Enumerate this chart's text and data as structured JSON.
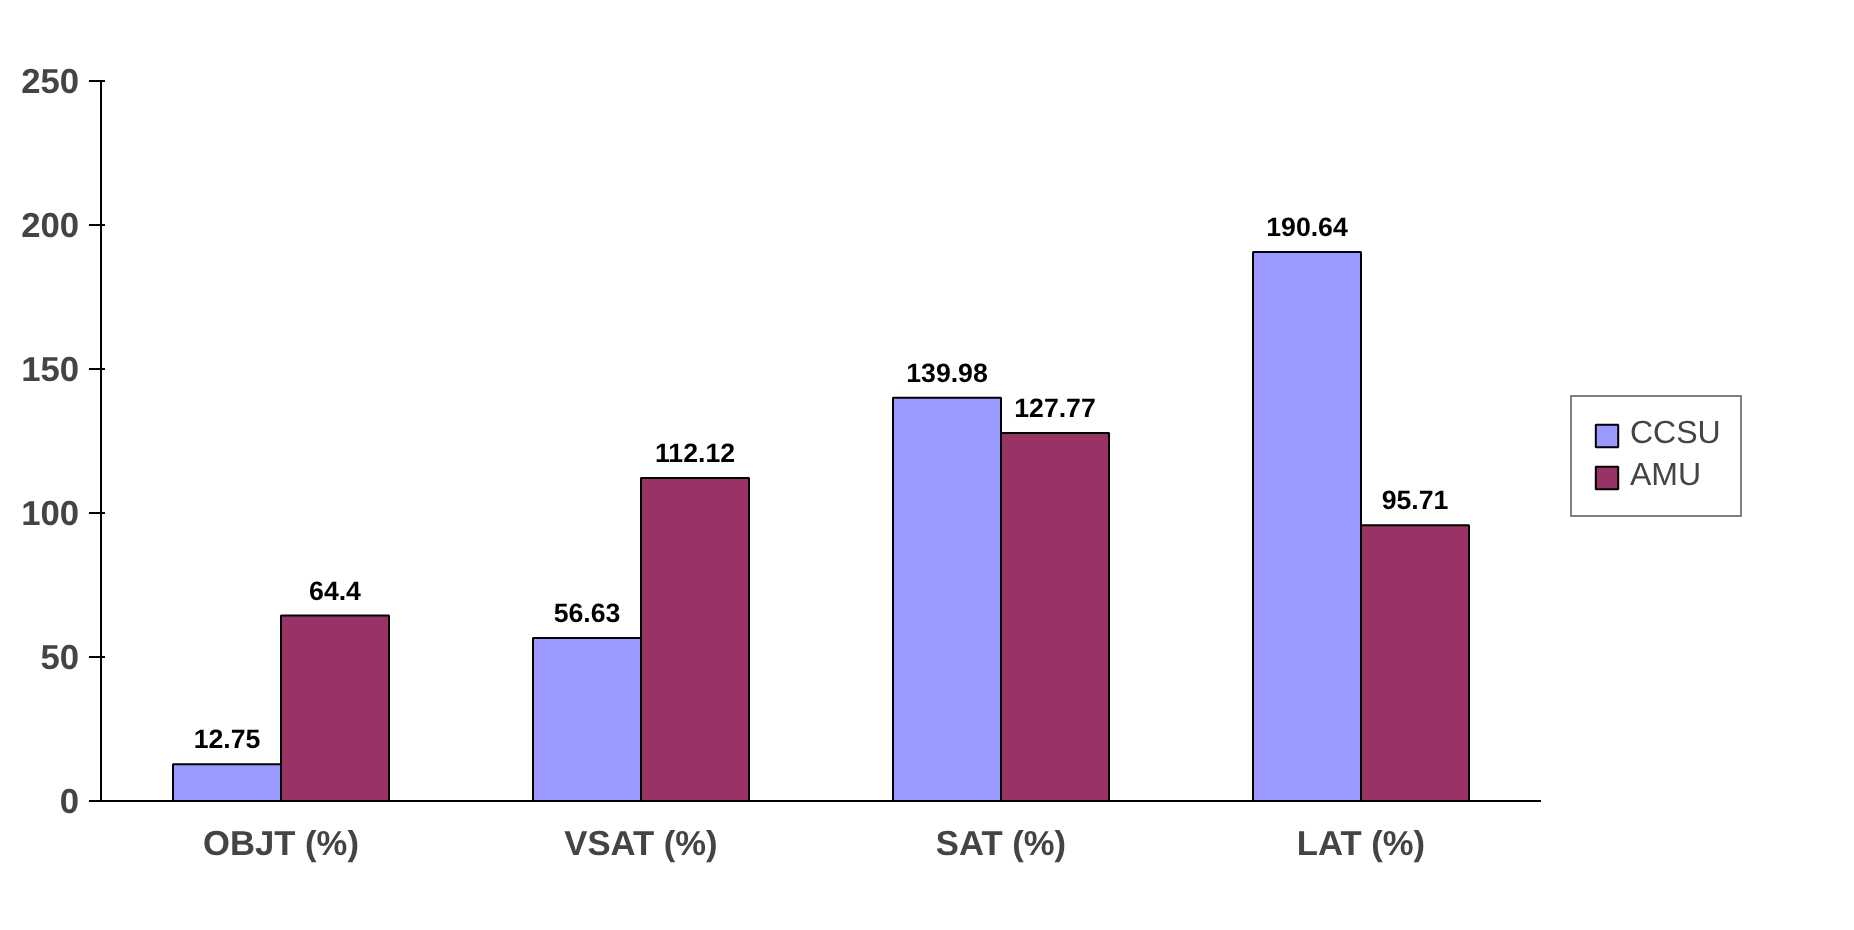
{
  "chart_data": {
    "type": "bar",
    "categories": [
      "OBJT (%)",
      "VSAT (%)",
      "SAT (%)",
      "LAT (%)"
    ],
    "series": [
      {
        "name": "CCSU",
        "color": "#9999ff",
        "values": [
          12.75,
          56.63,
          139.98,
          190.64
        ]
      },
      {
        "name": "AMU",
        "color": "#993366",
        "values": [
          64.4,
          112.12,
          127.77,
          95.71
        ]
      }
    ],
    "ylim": [
      0,
      250
    ],
    "yticks": [
      0,
      50,
      100,
      150,
      200,
      250
    ],
    "data_labels": true,
    "legend": "right",
    "grid": false
  }
}
